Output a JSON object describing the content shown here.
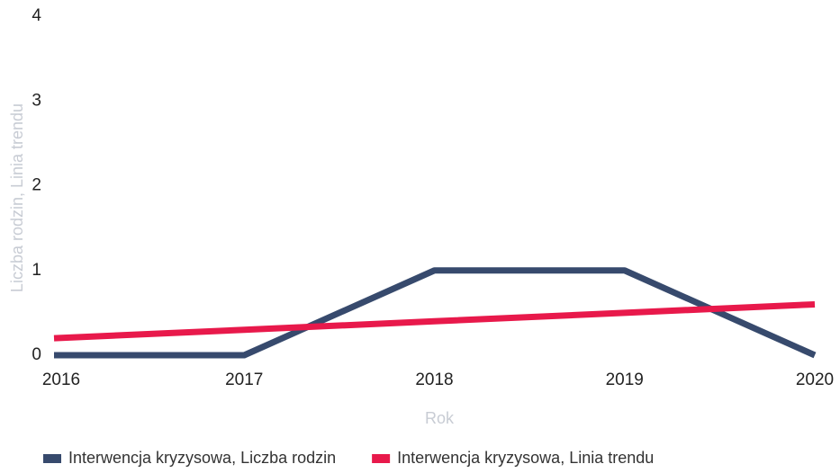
{
  "chart_data": {
    "type": "line",
    "x_label": "Rok",
    "y_label": "Liczba rodzin, Linia trendu",
    "x": [
      2016,
      2017,
      2018,
      2019,
      2020
    ],
    "xlim": [
      2016,
      2020
    ],
    "xticks": [
      2016,
      2017,
      2018,
      2019,
      2020
    ],
    "ylim": [
      0,
      4
    ],
    "yticks": [
      0,
      1,
      2,
      3,
      4
    ],
    "grid": false,
    "legend": "bottom",
    "series": [
      {
        "name": "Interwencja kryzysowa, Liczba rodzin",
        "color": "#374a6d",
        "values": [
          0,
          0,
          1,
          1,
          0
        ]
      },
      {
        "name": "Interwencja kryzysowa, Linia trendu",
        "color": "#e8194b",
        "values": [
          0.2,
          0.3,
          0.4,
          0.5,
          0.6
        ]
      }
    ]
  }
}
